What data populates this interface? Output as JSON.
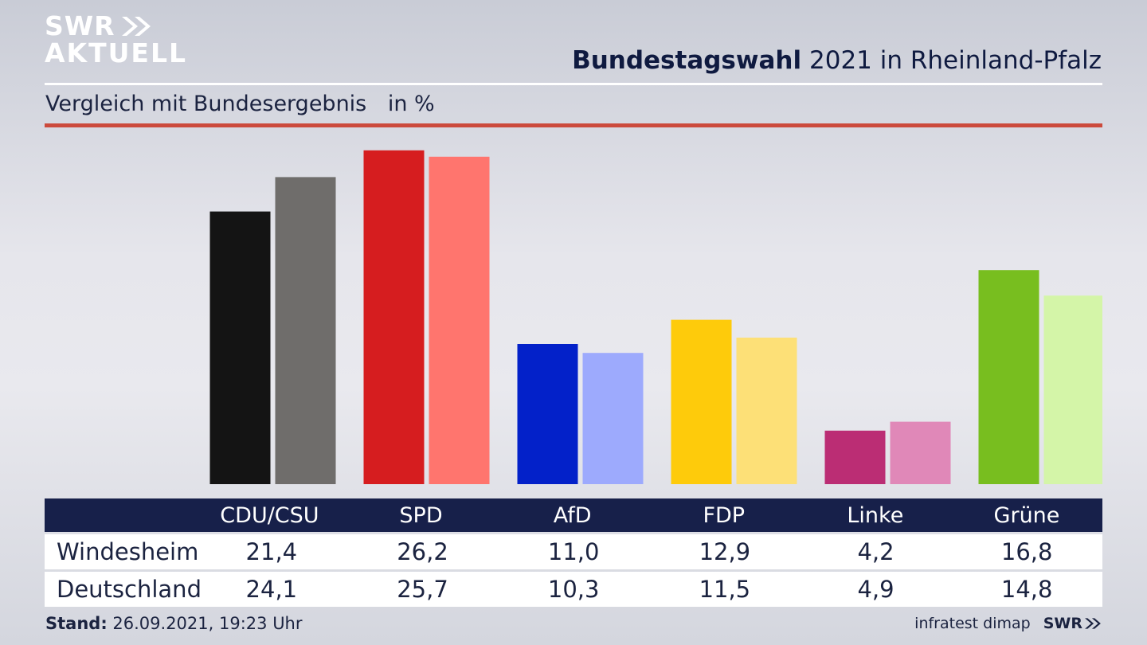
{
  "brand": {
    "logo_line1": "SWR",
    "logo_line2": "AKTUELL",
    "footer_logo": "SWR"
  },
  "header": {
    "title_bold": "Bundestagswahl",
    "title_rest": "2021 in Rheinland-Pfalz",
    "subtitle": "Vergleich mit Bundesergebnis",
    "unit": "in %"
  },
  "footer": {
    "stand_label": "Stand:",
    "stand_value": "26.09.2021, 19:23 Uhr",
    "source": "infratest dimap"
  },
  "chart_data": {
    "type": "bar",
    "categories": [
      "CDU/CSU",
      "SPD",
      "AfD",
      "FDP",
      "Linke",
      "Grüne"
    ],
    "ylim": [
      0,
      28
    ],
    "grid": false,
    "legend": "none",
    "series": [
      {
        "name": "Windesheim",
        "values": [
          21.4,
          26.2,
          11.0,
          12.9,
          4.2,
          16.8
        ],
        "display": [
          "21,4",
          "26,2",
          "11,0",
          "12,9",
          "4,2",
          "16,8"
        ],
        "colors": [
          "#141414",
          "#d61d1f",
          "#0321c9",
          "#fecb0b",
          "#bb2d74",
          "#78be1f"
        ]
      },
      {
        "name": "Deutschland",
        "values": [
          24.1,
          25.7,
          10.3,
          11.5,
          4.9,
          14.8
        ],
        "display": [
          "24,1",
          "25,7",
          "10,3",
          "11,5",
          "4,9",
          "14,8"
        ],
        "colors": [
          "#6f6d6b",
          "#ff756e",
          "#9daafd",
          "#fde077",
          "#e088b8",
          "#d4f5a8"
        ]
      }
    ]
  }
}
